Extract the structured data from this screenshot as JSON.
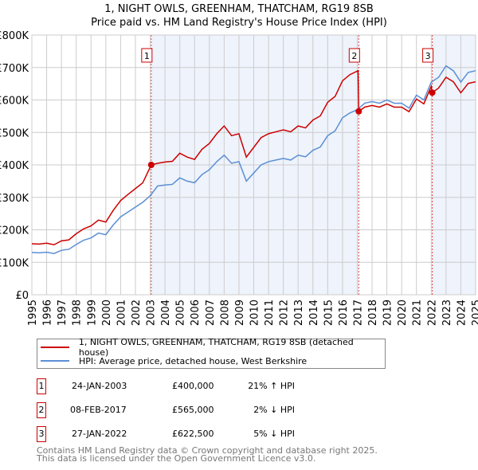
{
  "title_line1": "1, NIGHT OWLS, GREENHAM, THATCHAM, RG19 8SB",
  "title_line2": "Price paid vs. HM Land Registry's House Price Index (HPI)",
  "legend": {
    "property": "1, NIGHT OWLS, GREENHAM, THATCHAM, RG19 8SB (detached house)",
    "hpi": "HPI: Average price, detached house, West Berkshire"
  },
  "colors": {
    "property": "#cc0000",
    "hpi": "#5b8fd4",
    "shade": "#eef3fc",
    "grid": "#cccccc"
  },
  "sales": [
    {
      "num": "1",
      "date": "24-JAN-2003",
      "price": "£400,000",
      "hpi": "21% ↑ HPI"
    },
    {
      "num": "2",
      "date": "08-FEB-2017",
      "price": "£565,000",
      "hpi": "2% ↓ HPI"
    },
    {
      "num": "3",
      "date": "27-JAN-2022",
      "price": "£622,500",
      "hpi": "5% ↓ HPI"
    }
  ],
  "footer": {
    "line1": "Contains HM Land Registry data © Crown copyright and database right 2025.",
    "line2": "This data is licensed under the Open Government Licence v3.0."
  },
  "chart_data": {
    "type": "line",
    "xlim": [
      1995,
      2025
    ],
    "ylim": [
      0,
      800000
    ],
    "yticks": [
      0,
      100000,
      200000,
      300000,
      400000,
      500000,
      600000,
      700000,
      800000
    ],
    "ytick_labels": [
      "£0",
      "£100K",
      "£200K",
      "£300K",
      "£400K",
      "£500K",
      "£600K",
      "£700K",
      "£800K"
    ],
    "xticks": [
      "1995",
      "1996",
      "1997",
      "1998",
      "1999",
      "2000",
      "2001",
      "2002",
      "2003",
      "2004",
      "2005",
      "2006",
      "2007",
      "2008",
      "2009",
      "2010",
      "2011",
      "2012",
      "2013",
      "2014",
      "2015",
      "2016",
      "2017",
      "2018",
      "2019",
      "2020",
      "2021",
      "2022",
      "2023",
      "2024",
      "2025"
    ],
    "hpi": {
      "x": [
        1995,
        1995.5,
        1996,
        1996.5,
        1997,
        1997.5,
        1998,
        1998.5,
        1999,
        1999.5,
        2000,
        2000.5,
        2001,
        2001.5,
        2002,
        2002.5,
        2003,
        2003.5,
        2004,
        2004.5,
        2005,
        2005.5,
        2006,
        2006.5,
        2007,
        2007.5,
        2008,
        2008.5,
        2009,
        2009.5,
        2010,
        2010.5,
        2011,
        2011.5,
        2012,
        2012.5,
        2013,
        2013.5,
        2014,
        2014.5,
        2015,
        2015.5,
        2016,
        2016.5,
        2017,
        2017.5,
        2018,
        2018.5,
        2019,
        2019.5,
        2020,
        2020.5,
        2021,
        2021.5,
        2022,
        2022.5,
        2023,
        2023.5,
        2024,
        2024.5,
        2025
      ],
      "y": [
        130,
        129,
        131,
        127,
        137,
        140,
        155,
        168,
        175,
        190,
        185,
        215,
        240,
        255,
        270,
        285,
        305,
        335,
        338,
        340,
        360,
        350,
        345,
        370,
        385,
        410,
        430,
        405,
        410,
        350,
        375,
        400,
        410,
        415,
        420,
        415,
        430,
        425,
        445,
        455,
        490,
        505,
        545,
        560,
        570,
        590,
        595,
        590,
        600,
        590,
        590,
        575,
        615,
        600,
        655,
        670,
        705,
        690,
        655,
        685,
        690
      ]
    },
    "property": {
      "x": [
        1995,
        1995.5,
        1996,
        1996.5,
        1997,
        1997.5,
        1998,
        1998.5,
        1999,
        1999.5,
        2000,
        2000.5,
        2001,
        2001.5,
        2002,
        2002.5,
        2003.07,
        2003.5,
        2004,
        2004.5,
        2005,
        2005.5,
        2006,
        2006.5,
        2007,
        2007.5,
        2008,
        2008.5,
        2009,
        2009.5,
        2010,
        2010.5,
        2011,
        2011.5,
        2012,
        2012.5,
        2013,
        2013.5,
        2014,
        2014.5,
        2015,
        2015.5,
        2016,
        2016.5,
        2017.05,
        2017.1,
        2017.5,
        2018,
        2018.5,
        2019,
        2019.5,
        2020,
        2020.5,
        2021,
        2021.5,
        2022,
        2022.07,
        2022.5,
        2023,
        2023.5,
        2024,
        2024.5,
        2025
      ],
      "y": [
        157,
        156,
        159,
        154,
        166,
        169,
        188,
        203,
        212,
        230,
        224,
        260,
        290,
        309,
        327,
        345,
        400,
        405,
        409,
        411,
        436,
        424,
        417,
        448,
        466,
        496,
        520,
        490,
        496,
        424,
        454,
        484,
        496,
        502,
        508,
        502,
        520,
        514,
        538,
        551,
        593,
        611,
        659,
        678,
        690,
        565,
        578,
        583,
        578,
        588,
        578,
        578,
        564,
        603,
        588,
        642,
        622.5,
        637,
        670,
        656,
        622,
        651,
        656
      ]
    },
    "y_units": "thousands GBP",
    "sale_markers": [
      {
        "label": "1",
        "x": 2003.07,
        "y": 400
      },
      {
        "label": "2",
        "x": 2017.1,
        "y": 565
      },
      {
        "label": "3",
        "x": 2022.07,
        "y": 622.5
      }
    ],
    "legend_position": "below"
  }
}
